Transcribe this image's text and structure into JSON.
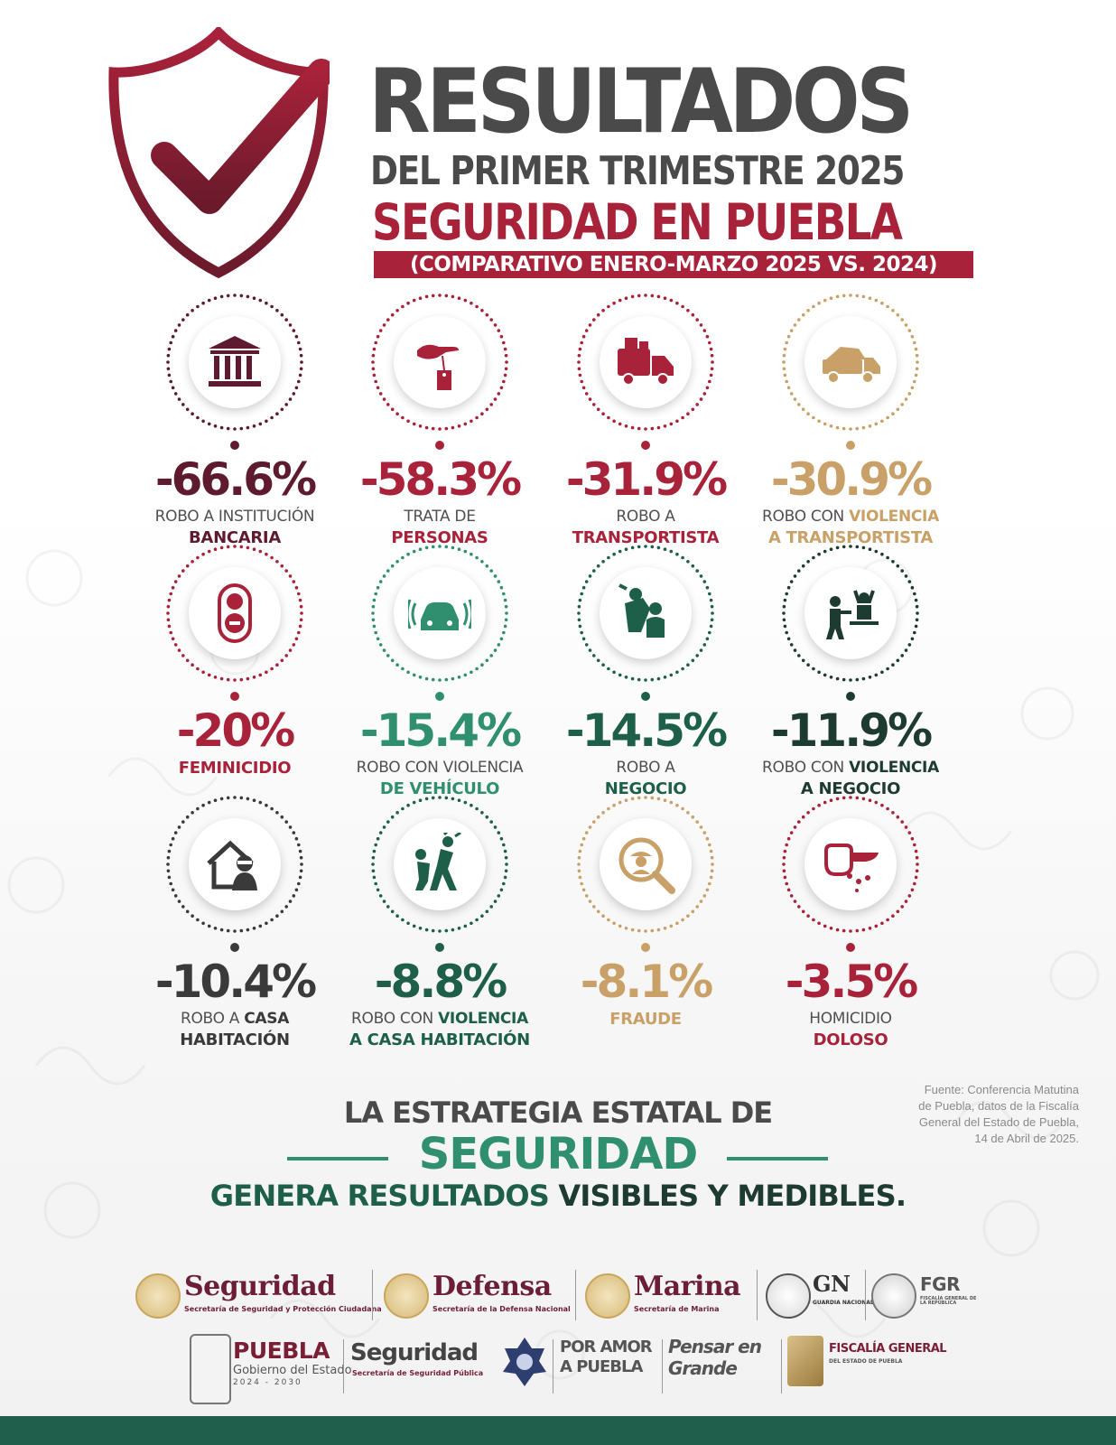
{
  "header": {
    "title": "RESULTADOS",
    "subtitle": "DEL PRIMER TRIMESTRE 2025",
    "topic": "SEGURIDAD EN PUEBLA",
    "comparison": "(COMPARATIVO ENERO-MARZO 2025 VS. 2024)",
    "shield_icon": "shield-check-icon",
    "colors": {
      "gray": "#4a4a4a",
      "red": "#a8223a"
    }
  },
  "stats": [
    {
      "value": "-66.6%",
      "line1": "ROBO A INSTITUCIÓN",
      "line1_strong": "",
      "line2": "BANCARIA",
      "icon": "bank-icon",
      "color": "#5e1a2e",
      "line2_color": "#5e1a2e"
    },
    {
      "value": "-58.3%",
      "line1": "TRATA DE",
      "line1_strong": "",
      "line2": "PERSONAS",
      "icon": "hand-price-tag-icon",
      "color": "#a8223a",
      "line2_color": "#a8223a"
    },
    {
      "value": "-31.9%",
      "line1": "ROBO A",
      "line1_strong": "",
      "line2": "TRANSPORTISTA",
      "icon": "moving-truck-icon",
      "color": "#a8223a",
      "line2_color": "#a8223a"
    },
    {
      "value": "-30.9%",
      "line1": "ROBO CON ",
      "line1_strong": "VIOLENCIA",
      "line2": "A TRANSPORTISTA",
      "icon": "dump-truck-icon",
      "color": "#c9a067",
      "line2_color": "#c9a067"
    },
    {
      "value": "-20%",
      "line1": "",
      "line1_strong": "",
      "line2": "FEMINICIDIO",
      "icon": "woman-icon",
      "color": "#a8223a",
      "line2_color": "#a8223a"
    },
    {
      "value": "-15.4%",
      "line1": "ROBO CON VIOLENCIA",
      "line1_strong": "",
      "line2": "DE VEHÍCULO",
      "icon": "car-alarm-icon",
      "color": "#2f8f6e",
      "line2_color": "#2f8f6e"
    },
    {
      "value": "-14.5%",
      "line1": "ROBO A",
      "line1_strong": "",
      "line2": "NEGOCIO",
      "icon": "robbery-icon",
      "color": "#1e5f4a",
      "line2_color": "#1e5f4a"
    },
    {
      "value": "-11.9%",
      "line1": "ROBO CON ",
      "line1_strong": "VIOLENCIA",
      "line2": "A NEGOCIO",
      "icon": "armed-robbery-icon",
      "color": "#1d3b31",
      "line2_color": "#1d3b31"
    },
    {
      "value": "-10.4%",
      "line1": "ROBO A ",
      "line1_strong": "CASA",
      "line2": "HABITACIÓN",
      "icon": "house-thief-icon",
      "color": "#3a3a3a",
      "line2_color": "#3a3a3a"
    },
    {
      "value": "-8.8%",
      "line1": "ROBO CON ",
      "line1_strong": "VIOLENCIA",
      "line2": "A CASA HABITACIÓN",
      "icon": "assault-icon",
      "color": "#1e5f4a",
      "line2_color": "#1e5f4a"
    },
    {
      "value": "-8.1%",
      "line1": "",
      "line1_strong": "",
      "line2": "FRAUDE",
      "icon": "fraud-magnifier-icon",
      "color": "#c9a067",
      "line2_color": "#c9a067"
    },
    {
      "value": "-3.5%",
      "line1": "HOMICIDIO",
      "line1_strong": "",
      "line2": "DOLOSO",
      "icon": "fist-knife-icon",
      "color": "#a8223a",
      "line2_color": "#a8223a"
    }
  ],
  "source": {
    "lines": [
      "Fuente: Conferencia Matutina",
      "de Puebla, datos de la Fiscalía",
      "General del Estado de Puebla,",
      "14 de Abril de 2025."
    ]
  },
  "strategy": {
    "line1": "LA ESTRATEGIA ESTATAL DE",
    "line2": "SEGURIDAD",
    "line3_a": "GENERA RESULTADOS ",
    "line3_b": "VISIBLES Y MEDIBLES."
  },
  "logos_federal": [
    {
      "name": "Seguridad",
      "sub": "Secretaría de Seguridad y Protección Ciudadana"
    },
    {
      "name": "Defensa",
      "sub": "Secretaría de la Defensa Nacional"
    },
    {
      "name": "Marina",
      "sub": "Secretaría de Marina"
    },
    {
      "name": "GN",
      "sub": "GUARDIA NACIONAL"
    },
    {
      "name": "FGR",
      "sub": "FISCALÍA GENERAL DE LA REPÚBLICA"
    }
  ],
  "logos_state": [
    {
      "name": "PUEBLA",
      "sub": "Gobierno del Estado",
      "extra": "2024 - 2030"
    },
    {
      "name": "Seguridad",
      "sub": "Secretaría de Seguridad Pública"
    },
    {
      "name": "POR AMOR A PUEBLA"
    },
    {
      "name": "Pensar en Grande"
    },
    {
      "name": "FISCALÍA GENERAL",
      "sub": "DEL ESTADO DE PUEBLA"
    }
  ]
}
